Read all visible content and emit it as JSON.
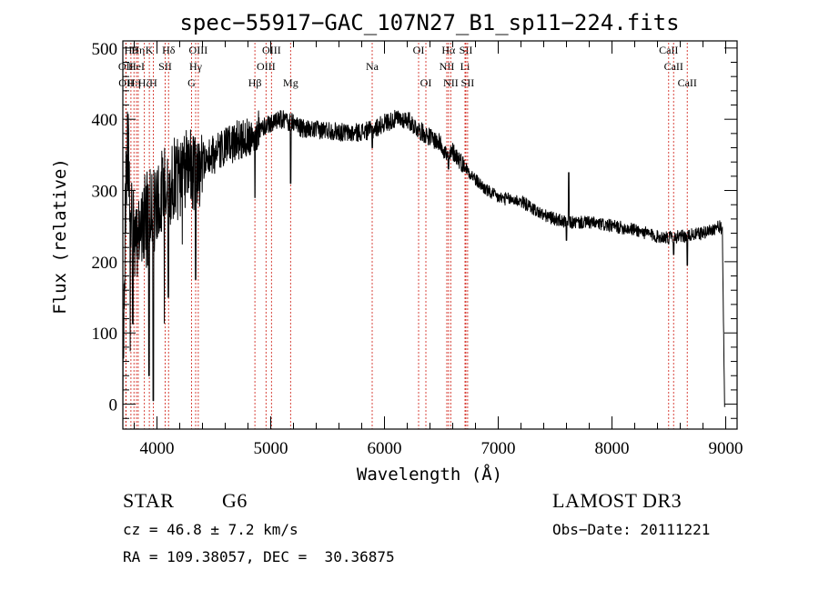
{
  "chart_data": {
    "type": "line",
    "title": "spec−55917−GAC_107N27_B1_sp11−224.fits",
    "xlabel": "Wavelength (Å)",
    "ylabel": "Flux (relative)",
    "xlim": [
      3700,
      9100
    ],
    "ylim": [
      -35,
      510
    ],
    "xticks": [
      4000,
      5000,
      6000,
      7000,
      8000,
      9000
    ],
    "xtick_labels": [
      "4000",
      "5000",
      "6000",
      "7000",
      "8000",
      "9000"
    ],
    "yticks": [
      0,
      100,
      200,
      300,
      400,
      500
    ],
    "ytick_labels": [
      "0",
      "100",
      "200",
      "300",
      "400",
      "500"
    ],
    "spectrum_anchor_points": {
      "wavelength": [
        3700,
        3720,
        3740,
        3760,
        3790,
        3830,
        3870,
        3920,
        3970,
        4030,
        4100,
        4200,
        4300,
        4400,
        4500,
        4600,
        4700,
        4800,
        4900,
        5000,
        5100,
        5200,
        5300,
        5500,
        5700,
        5900,
        6000,
        6100,
        6200,
        6300,
        6400,
        6500,
        6560,
        6600,
        6700,
        6800,
        6900,
        7000,
        7200,
        7400,
        7600,
        7800,
        8000,
        8200,
        8400,
        8600,
        8800,
        8950,
        8970,
        8990
      ],
      "flux": [
        20,
        250,
        380,
        300,
        240,
        230,
        260,
        270,
        270,
        300,
        310,
        320,
        330,
        340,
        350,
        360,
        370,
        375,
        385,
        395,
        400,
        395,
        385,
        385,
        380,
        385,
        395,
        400,
        400,
        385,
        375,
        365,
        345,
        355,
        335,
        315,
        300,
        290,
        285,
        265,
        255,
        255,
        250,
        245,
        235,
        235,
        240,
        250,
        240,
        0
      ]
    },
    "spectrum_features": [
      {
        "wavelength": 3930,
        "flux": 40
      },
      {
        "wavelength": 3968,
        "flux": 5
      },
      {
        "wavelength": 4100,
        "flux": 150
      },
      {
        "wavelength": 4340,
        "flux": 175
      },
      {
        "wavelength": 4861,
        "flux": 290
      },
      {
        "wavelength": 5175,
        "flux": 310
      },
      {
        "wavelength": 5892,
        "flux": 360
      },
      {
        "wavelength": 6563,
        "flux": 330
      },
      {
        "wavelength": 7600,
        "flux": 230
      },
      {
        "wavelength": 7620,
        "flux": 325
      },
      {
        "wavelength": 8498,
        "flux": 225
      },
      {
        "wavelength": 8542,
        "flux": 210
      },
      {
        "wavelength": 8662,
        "flux": 195
      }
    ],
    "line_markers": [
      {
        "wavelength": 3726,
        "label": "OII",
        "row": 1
      },
      {
        "wavelength": 3729,
        "label": "OII",
        "row": 2
      },
      {
        "wavelength": 3771,
        "label": "Hθ",
        "row": 0
      },
      {
        "wavelength": 3798,
        "label": "Hη",
        "row": 2
      },
      {
        "wavelength": 3820,
        "label": "HeI",
        "row": 1
      },
      {
        "wavelength": 3835,
        "label": "Hη",
        "row": 0
      },
      {
        "wavelength": 3889,
        "label": "Hζ",
        "row": 2
      },
      {
        "wavelength": 3933,
        "label": "K",
        "row": 0
      },
      {
        "wavelength": 3968,
        "label": "H",
        "row": 2
      },
      {
        "wavelength": 4072,
        "label": "SII",
        "row": 1
      },
      {
        "wavelength": 4102,
        "label": "Hδ",
        "row": 0
      },
      {
        "wavelength": 4304,
        "label": "G",
        "row": 2
      },
      {
        "wavelength": 4340,
        "label": "Hγ",
        "row": 1
      },
      {
        "wavelength": 4363,
        "label": "OIII",
        "row": 0
      },
      {
        "wavelength": 4861,
        "label": "Hβ",
        "row": 2
      },
      {
        "wavelength": 4959,
        "label": "OIII",
        "row": 1
      },
      {
        "wavelength": 5007,
        "label": "OIII",
        "row": 0
      },
      {
        "wavelength": 5175,
        "label": "Mg",
        "row": 2
      },
      {
        "wavelength": 5892,
        "label": "Na",
        "row": 1
      },
      {
        "wavelength": 6300,
        "label": "OI",
        "row": 0
      },
      {
        "wavelength": 6364,
        "label": "OI",
        "row": 2
      },
      {
        "wavelength": 6548,
        "label": "NII",
        "row": 1
      },
      {
        "wavelength": 6563,
        "label": "Hα",
        "row": 0
      },
      {
        "wavelength": 6583,
        "label": "NII",
        "row": 2
      },
      {
        "wavelength": 6708,
        "label": "Li",
        "row": 1
      },
      {
        "wavelength": 6716,
        "label": "SII",
        "row": 0
      },
      {
        "wavelength": 6731,
        "label": "SII",
        "row": 2
      },
      {
        "wavelength": 8498,
        "label": "CaII",
        "row": 0
      },
      {
        "wavelength": 8542,
        "label": "CaII",
        "row": 1
      },
      {
        "wavelength": 8662,
        "label": "CaII",
        "row": 2
      }
    ]
  },
  "footer": {
    "object_class": "STAR",
    "subclass": "G6",
    "survey": "LAMOST DR3",
    "redshift_text": "cz = 46.8 ± 7.2 km/s",
    "obs_date_text": "Obs−Date: 20111221",
    "coords_text": "RA = 109.38057, DEC =  30.36875"
  }
}
